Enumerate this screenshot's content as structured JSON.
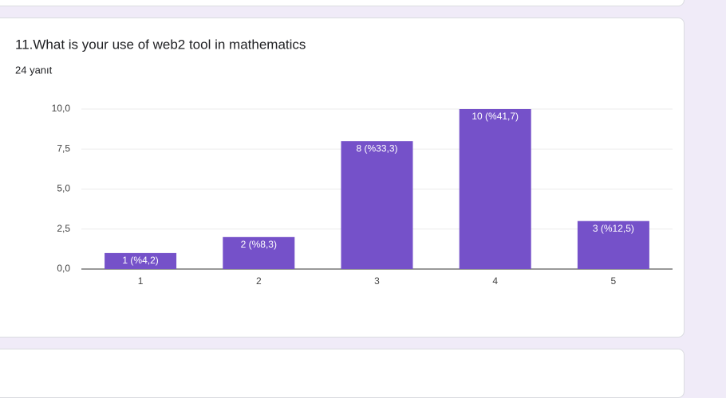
{
  "chart_data": {
    "type": "bar",
    "title": "11.What is your use of web2 tool in mathematics",
    "subtitle": "24 yanıt",
    "categories": [
      "1",
      "2",
      "3",
      "4",
      "5"
    ],
    "values": [
      1,
      2,
      8,
      10,
      3
    ],
    "value_labels": [
      "1 (%4,2)",
      "2 (%8,3)",
      "8 (%33,3)",
      "10 (%41,7)",
      "3 (%12,5)"
    ],
    "color": "#7551c9",
    "ylim": [
      0,
      10
    ],
    "yticks": [
      {
        "value": 0,
        "label": "0,0"
      },
      {
        "value": 2.5,
        "label": "2,5"
      },
      {
        "value": 5,
        "label": "5,0"
      },
      {
        "value": 7.5,
        "label": "7,5"
      },
      {
        "value": 10,
        "label": "10,0"
      }
    ],
    "grid": true
  }
}
